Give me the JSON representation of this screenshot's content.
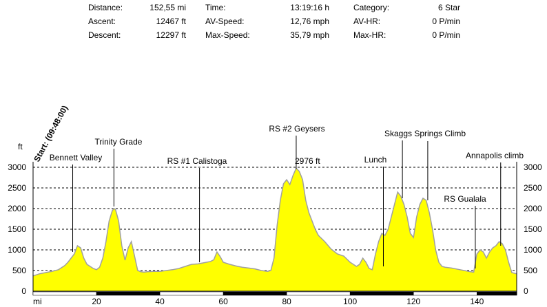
{
  "stats": {
    "distance_label": "Distance:",
    "distance_value": "152,55 mi",
    "ascent_label": "Ascent:",
    "ascent_value": "12467 ft",
    "descent_label": "Descent:",
    "descent_value": "12297 ft",
    "time_label": "Time:",
    "time_value": "13:19:16 h",
    "avspeed_label": "AV-Speed:",
    "avspeed_value": "12,76 mph",
    "maxspeed_label": "Max-Speed:",
    "maxspeed_value": "35,79 mph",
    "category_label": "Category:",
    "category_value": "6 Star",
    "avhr_label": "AV-HR:",
    "avhr_value": "0 P/min",
    "maxhr_label": "Max-HR:",
    "maxhr_value": "0 P/min"
  },
  "chart_data": {
    "type": "area",
    "xunit": "mi",
    "yunit": "ft",
    "xlim": [
      0,
      152.55
    ],
    "ylim": [
      0,
      3000
    ],
    "xticks": [
      20,
      40,
      60,
      80,
      100,
      120,
      140
    ],
    "yticks": [
      3000,
      2500,
      2000,
      1500,
      1000,
      500,
      0
    ],
    "grid": true,
    "fill_color": "#ffff00",
    "line_color": "#a0a0a0",
    "start_label": "Start: (09:48:00)",
    "max_label": "2976 ft",
    "max_label_color": "#c00000",
    "annotations": [
      {
        "label": "Bennett Valley",
        "x": 12.5,
        "elev": 950
      },
      {
        "label": "Trinity Grade",
        "x": 25.5,
        "elev": 2050
      },
      {
        "label": "RS #1 Calistoga",
        "x": 52.5,
        "elev": 700
      },
      {
        "label": "RS #2 Geysers",
        "x": 83,
        "elev": 2960
      },
      {
        "label": "Lunch",
        "x": 110.5,
        "elev": 600
      },
      {
        "label": "Skaggs Springs Climb",
        "x": 116.5,
        "elev": 2250
      },
      {
        "label": "Skaggs Springs Climb",
        "x": 124.5,
        "elev": 2200
      },
      {
        "label": "RS Gualala",
        "x": 139.5,
        "elev": 550
      },
      {
        "label": "Annapolis climb",
        "x": 147.5,
        "elev": 1100
      }
    ],
    "x": [
      0,
      2,
      4,
      6,
      8,
      10,
      11,
      12,
      13,
      14,
      15,
      16,
      17,
      18,
      19,
      20,
      21,
      22,
      23,
      24,
      25,
      25.5,
      26,
      27,
      28,
      29,
      30,
      31,
      32,
      33,
      34,
      35,
      36,
      38,
      40,
      42,
      44,
      46,
      48,
      50,
      52,
      54,
      56,
      57,
      58,
      59,
      60,
      62,
      64,
      66,
      68,
      70,
      72,
      74,
      75,
      76,
      77,
      78,
      79,
      80,
      81,
      82,
      83,
      84,
      85,
      86,
      87,
      88,
      89,
      90,
      92,
      94,
      96,
      98,
      100,
      102,
      103,
      104,
      105,
      106,
      107,
      108,
      109,
      110,
      111,
      112,
      113,
      114,
      115,
      116,
      117,
      118,
      119,
      120,
      121,
      122,
      123,
      124,
      125,
      126,
      127,
      128,
      129,
      130,
      132,
      134,
      136,
      138,
      139,
      140,
      141,
      142,
      143,
      144,
      145,
      146,
      147,
      148,
      149,
      150,
      151,
      152.55
    ],
    "y": [
      370,
      420,
      450,
      480,
      520,
      620,
      700,
      800,
      900,
      1100,
      1050,
      800,
      650,
      600,
      550,
      520,
      580,
      800,
      1200,
      1700,
      1950,
      2000,
      1980,
      1700,
      1100,
      750,
      1050,
      1200,
      850,
      500,
      470,
      460,
      470,
      480,
      480,
      500,
      520,
      550,
      600,
      650,
      660,
      690,
      720,
      760,
      950,
      840,
      700,
      650,
      610,
      580,
      560,
      540,
      500,
      480,
      500,
      800,
      1600,
      2200,
      2600,
      2700,
      2580,
      2800,
      2976,
      2900,
      2700,
      2200,
      1900,
      1700,
      1500,
      1350,
      1200,
      1020,
      900,
      850,
      700,
      600,
      650,
      800,
      700,
      550,
      520,
      900,
      1200,
      1400,
      1350,
      1500,
      1800,
      2100,
      2400,
      2300,
      2100,
      1800,
      1400,
      1300,
      1800,
      2100,
      2250,
      2200,
      1900,
      1500,
      1000,
      700,
      600,
      580,
      560,
      530,
      500,
      470,
      460,
      900,
      1000,
      950,
      800,
      950,
      1050,
      1100,
      1200,
      1150,
      1000,
      700,
      450,
      420
    ]
  }
}
